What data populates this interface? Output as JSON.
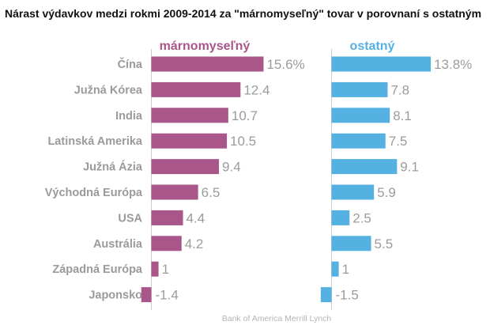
{
  "title": "Nárast výdavkov medzi rokmi 2009-2014 za \"márnomyseľný\" tovar v porovnaní s ostatným",
  "source": "Bank of America Merrill Lynch",
  "colors": {
    "vanity": "#a9568b",
    "other": "#55b1e2",
    "label": "#9a9a9a",
    "axis": "#cccccc"
  },
  "chart_data": {
    "type": "bar",
    "orientation": "horizontal",
    "categories": [
      "Čína",
      "Južná Kórea",
      "India",
      "Latinská Amerika",
      "Južná Ázia",
      "Východná Európa",
      "USA",
      "Austrália",
      "Západná Európa",
      "Japonsko"
    ],
    "series": [
      {
        "name": "márnomyseľný",
        "values": [
          15.6,
          12.4,
          10.7,
          10.5,
          9.4,
          6.5,
          4.4,
          4.2,
          1,
          -1.4
        ],
        "labels": [
          "15.6%",
          "12.4",
          "10.7",
          "10.5",
          "9.4",
          "6.5",
          "4.4",
          "4.2",
          "1",
          "-1.4"
        ],
        "color": "#a9568b"
      },
      {
        "name": "ostatný",
        "values": [
          13.8,
          7.8,
          8.1,
          7.5,
          9.1,
          5.9,
          2.5,
          5.5,
          1,
          -1.5
        ],
        "labels": [
          "13.8%",
          "7.8",
          "8.1",
          "7.5",
          "9.1",
          "5.9",
          "2.5",
          "5.5",
          "1",
          "-1.5"
        ],
        "color": "#55b1e2"
      }
    ],
    "xlabel": "",
    "ylabel": "",
    "grid": false,
    "legend": "panel headers above bars"
  }
}
